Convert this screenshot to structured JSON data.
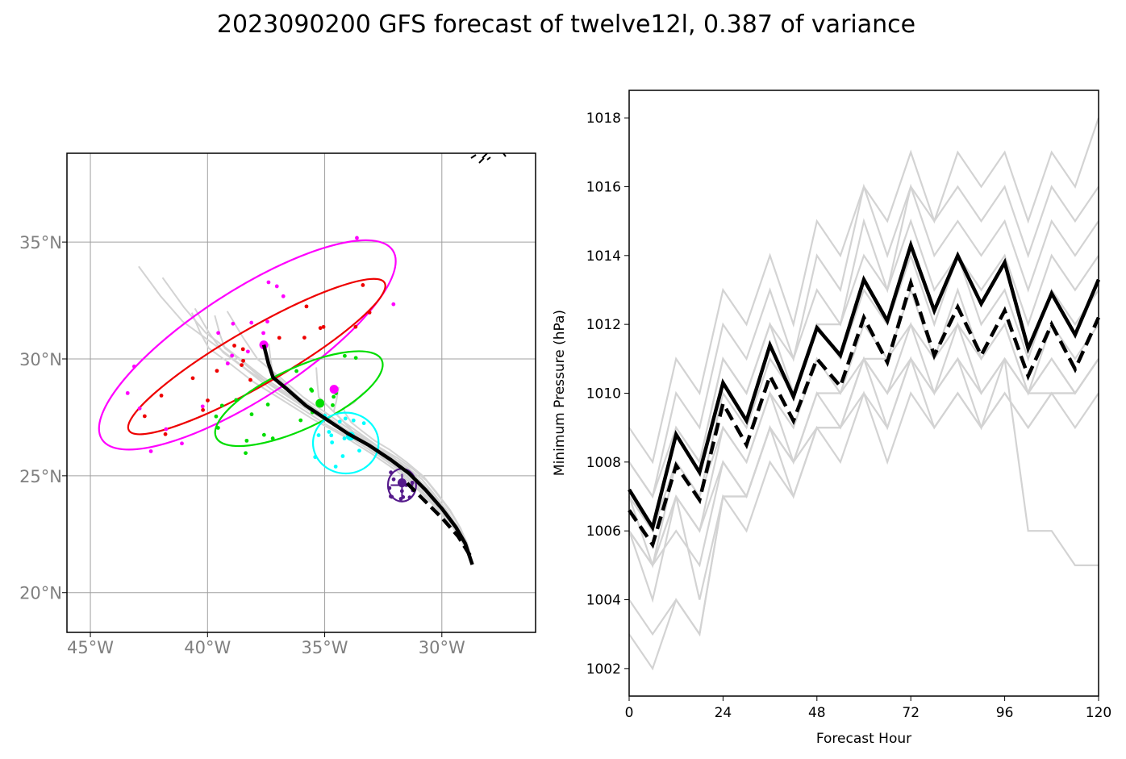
{
  "title": "2023090200 GFS forecast of twelve12l, 0.387 of variance",
  "colors": {
    "ensemble": "#d3d3d3",
    "mean": "#000000",
    "grid": "#a0a0a0",
    "map_tick": "#808080",
    "clusters": [
      "#ff00ff",
      "#ee0000",
      "#00dd00",
      "#00ffff",
      "#551a8b"
    ]
  },
  "chart_data": [
    {
      "type": "scatter",
      "kind": "track-map",
      "title": "",
      "xlabel": "",
      "ylabel": "",
      "xlim": [
        -46,
        -26
      ],
      "ylim": [
        18.3,
        38.8
      ],
      "xticks": [
        -45,
        -40,
        -35,
        -30
      ],
      "xtick_labels": [
        "45°W",
        "40°W",
        "35°W",
        "30°W"
      ],
      "yticks": [
        20,
        25,
        30,
        35
      ],
      "ytick_labels": [
        "20°N",
        "25°N",
        "30°N",
        "35°N"
      ],
      "grid": true,
      "mean_track": {
        "lon": [
          -28.7,
          -29.0,
          -29.4,
          -30.0,
          -30.7,
          -31.4,
          -32.2,
          -33.1,
          -34.0,
          -34.9,
          -35.8,
          -36.6,
          -37.2,
          -37.4,
          -37.6
        ],
        "lat": [
          21.2,
          22.1,
          22.8,
          23.6,
          24.4,
          25.1,
          25.7,
          26.3,
          26.8,
          27.4,
          28.0,
          28.7,
          29.2,
          29.8,
          30.6
        ]
      },
      "mean_track_alt": {
        "lon": [
          -28.8,
          -29.3,
          -30.0,
          -30.8,
          -31.6
        ],
        "lat": [
          21.6,
          22.4,
          23.2,
          24.0,
          24.8
        ]
      },
      "cluster_ellipses": [
        {
          "cx": -38.3,
          "cy": 30.6,
          "rx": 7.4,
          "ry": 2.3,
          "angle_deg": -33,
          "color": "#ff00ff"
        },
        {
          "cx": -37.9,
          "cy": 30.1,
          "rx": 6.3,
          "ry": 1.2,
          "angle_deg": -30,
          "color": "#ee0000"
        },
        {
          "cx": -36.1,
          "cy": 28.3,
          "rx": 3.9,
          "ry": 1.3,
          "angle_deg": -25,
          "color": "#00dd00"
        },
        {
          "cx": -34.1,
          "cy": 26.4,
          "rx": 1.4,
          "ry": 1.3,
          "angle_deg": 0,
          "color": "#00ffff"
        },
        {
          "cx": -31.7,
          "cy": 24.6,
          "rx": 0.6,
          "ry": 0.7,
          "angle_deg": 0,
          "color": "#551a8b"
        }
      ],
      "cluster_centers": [
        {
          "lon": -37.6,
          "lat": 30.6,
          "color": "#ff00ff"
        },
        {
          "lon": -34.6,
          "lat": 28.7,
          "color": "#ff00ff"
        },
        {
          "lon": -35.2,
          "lat": 28.1,
          "color": "#00dd00"
        },
        {
          "lon": -33.9,
          "lat": 26.7,
          "color": "#00ffff"
        },
        {
          "lon": -31.7,
          "lat": 24.7,
          "color": "#551a8b"
        }
      ]
    },
    {
      "type": "line",
      "title": "",
      "xlabel": "Forecast Hour",
      "ylabel": "Minimum Pressure (hPa)",
      "xlim": [
        0,
        120
      ],
      "ylim": [
        1001.2,
        1018.8
      ],
      "xticks": [
        0,
        24,
        48,
        72,
        96,
        120
      ],
      "yticks": [
        1002,
        1004,
        1006,
        1008,
        1010,
        1012,
        1014,
        1016,
        1018
      ],
      "x": [
        0,
        6,
        12,
        18,
        24,
        30,
        36,
        42,
        48,
        54,
        60,
        66,
        72,
        78,
        84,
        90,
        96,
        102,
        108,
        114,
        120
      ],
      "series": [
        {
          "role": "mean",
          "style": "solid",
          "values": [
            1007.2,
            1006.1,
            1008.8,
            1007.7,
            1010.3,
            1009.2,
            1011.4,
            1009.9,
            1011.9,
            1011.1,
            1013.3,
            1012.1,
            1014.3,
            1012.4,
            1014.0,
            1012.6,
            1013.8,
            1011.3,
            1012.9,
            1011.7,
            1013.3
          ]
        },
        {
          "role": "mean",
          "style": "dashed",
          "values": [
            1006.6,
            1005.6,
            1007.9,
            1006.9,
            1009.7,
            1008.5,
            1010.5,
            1009.2,
            1011.0,
            1010.2,
            1012.2,
            1010.9,
            1013.2,
            1011.1,
            1012.5,
            1011.1,
            1012.4,
            1010.5,
            1012.0,
            1010.7,
            1012.2
          ]
        },
        {
          "role": "member",
          "values": [
            1009.0,
            1008.0,
            1011.0,
            1010.0,
            1013.0,
            1012.0,
            1014.0,
            1012.0,
            1015.0,
            1014.0,
            1016.0,
            1015.0,
            1017.0,
            1015.0,
            1017.0,
            1016.0,
            1017.0,
            1015.0,
            1017.0,
            1016.0,
            1018.0
          ]
        },
        {
          "role": "member",
          "values": [
            1008.0,
            1007.0,
            1010.0,
            1009.0,
            1012.0,
            1011.0,
            1013.0,
            1011.0,
            1014.0,
            1013.0,
            1016.0,
            1014.0,
            1016.0,
            1015.0,
            1016.0,
            1015.0,
            1016.0,
            1014.0,
            1016.0,
            1015.0,
            1016.0
          ]
        },
        {
          "role": "member",
          "values": [
            1008.0,
            1007.0,
            1009.0,
            1008.0,
            1011.0,
            1010.0,
            1012.0,
            1011.0,
            1013.0,
            1012.0,
            1015.0,
            1013.0,
            1016.0,
            1014.0,
            1015.0,
            1014.0,
            1015.0,
            1013.0,
            1015.0,
            1014.0,
            1015.0
          ]
        },
        {
          "role": "member",
          "values": [
            1007.0,
            1006.0,
            1009.0,
            1008.0,
            1011.0,
            1010.0,
            1012.0,
            1010.0,
            1012.0,
            1012.0,
            1014.0,
            1013.0,
            1015.0,
            1013.0,
            1014.0,
            1013.0,
            1014.0,
            1012.0,
            1014.0,
            1013.0,
            1014.0
          ]
        },
        {
          "role": "member",
          "values": [
            1007.0,
            1006.0,
            1008.0,
            1007.0,
            1010.0,
            1009.0,
            1011.0,
            1010.0,
            1012.0,
            1011.0,
            1013.0,
            1012.0,
            1014.0,
            1012.0,
            1014.0,
            1012.0,
            1013.0,
            1011.0,
            1013.0,
            1012.0,
            1013.0
          ]
        },
        {
          "role": "member",
          "values": [
            1007.0,
            1005.0,
            1008.0,
            1007.0,
            1009.0,
            1008.0,
            1010.0,
            1009.0,
            1011.0,
            1010.0,
            1012.0,
            1011.0,
            1013.0,
            1011.0,
            1013.0,
            1011.0,
            1012.0,
            1010.0,
            1012.0,
            1011.0,
            1012.0
          ]
        },
        {
          "role": "member",
          "values": [
            1006.0,
            1005.0,
            1007.0,
            1006.0,
            1009.0,
            1008.0,
            1010.0,
            1008.0,
            1010.0,
            1009.0,
            1011.0,
            1010.0,
            1012.0,
            1010.0,
            1012.0,
            1010.0,
            1011.0,
            1010.0,
            1011.0,
            1010.0,
            1011.0
          ]
        },
        {
          "role": "member",
          "values": [
            1006.0,
            1005.0,
            1007.0,
            1006.0,
            1008.0,
            1007.0,
            1009.0,
            1008.0,
            1009.0,
            1009.0,
            1011.0,
            1009.0,
            1011.0,
            1010.0,
            1011.0,
            1010.0,
            1011.0,
            1010.0,
            1010.0,
            1010.0,
            1011.0
          ]
        },
        {
          "role": "member",
          "values": [
            1006.0,
            1005.0,
            1006.0,
            1005.0,
            1008.0,
            1007.0,
            1009.0,
            1008.0,
            1009.0,
            1009.0,
            1010.0,
            1009.0,
            1011.0,
            1009.0,
            1010.0,
            1009.0,
            1010.0,
            1009.0,
            1010.0,
            1010.0,
            1011.0
          ]
        },
        {
          "role": "member",
          "values": [
            1006.0,
            1004.0,
            1007.0,
            1004.0,
            1007.0,
            1007.0,
            1009.0,
            1007.0,
            1009.0,
            1009.0,
            1011.0,
            1010.0,
            1011.0,
            1010.0,
            1011.0,
            1009.0,
            1011.0,
            1006.0,
            1006.0,
            1005.0,
            1005.0
          ]
        },
        {
          "role": "member",
          "values": [
            1004.0,
            1003.0,
            1004.0,
            1003.0,
            1007.0,
            1006.0,
            1008.0,
            1007.0,
            1009.0,
            1008.0,
            1010.0,
            1008.0,
            1010.0,
            1009.0,
            1010.0,
            1009.0,
            1010.0,
            1009.0,
            1010.0,
            1009.0,
            1010.0
          ]
        },
        {
          "role": "member",
          "values": [
            1003.0,
            1002.0,
            1004.0,
            1003.0,
            1007.0,
            1007.0,
            1009.0,
            1008.0,
            1010.0,
            1010.0,
            1011.0,
            1011.0,
            1012.0,
            1011.0,
            1012.0,
            1011.0,
            1012.0,
            1010.0,
            1011.0,
            1010.0,
            1011.0
          ]
        }
      ]
    }
  ]
}
